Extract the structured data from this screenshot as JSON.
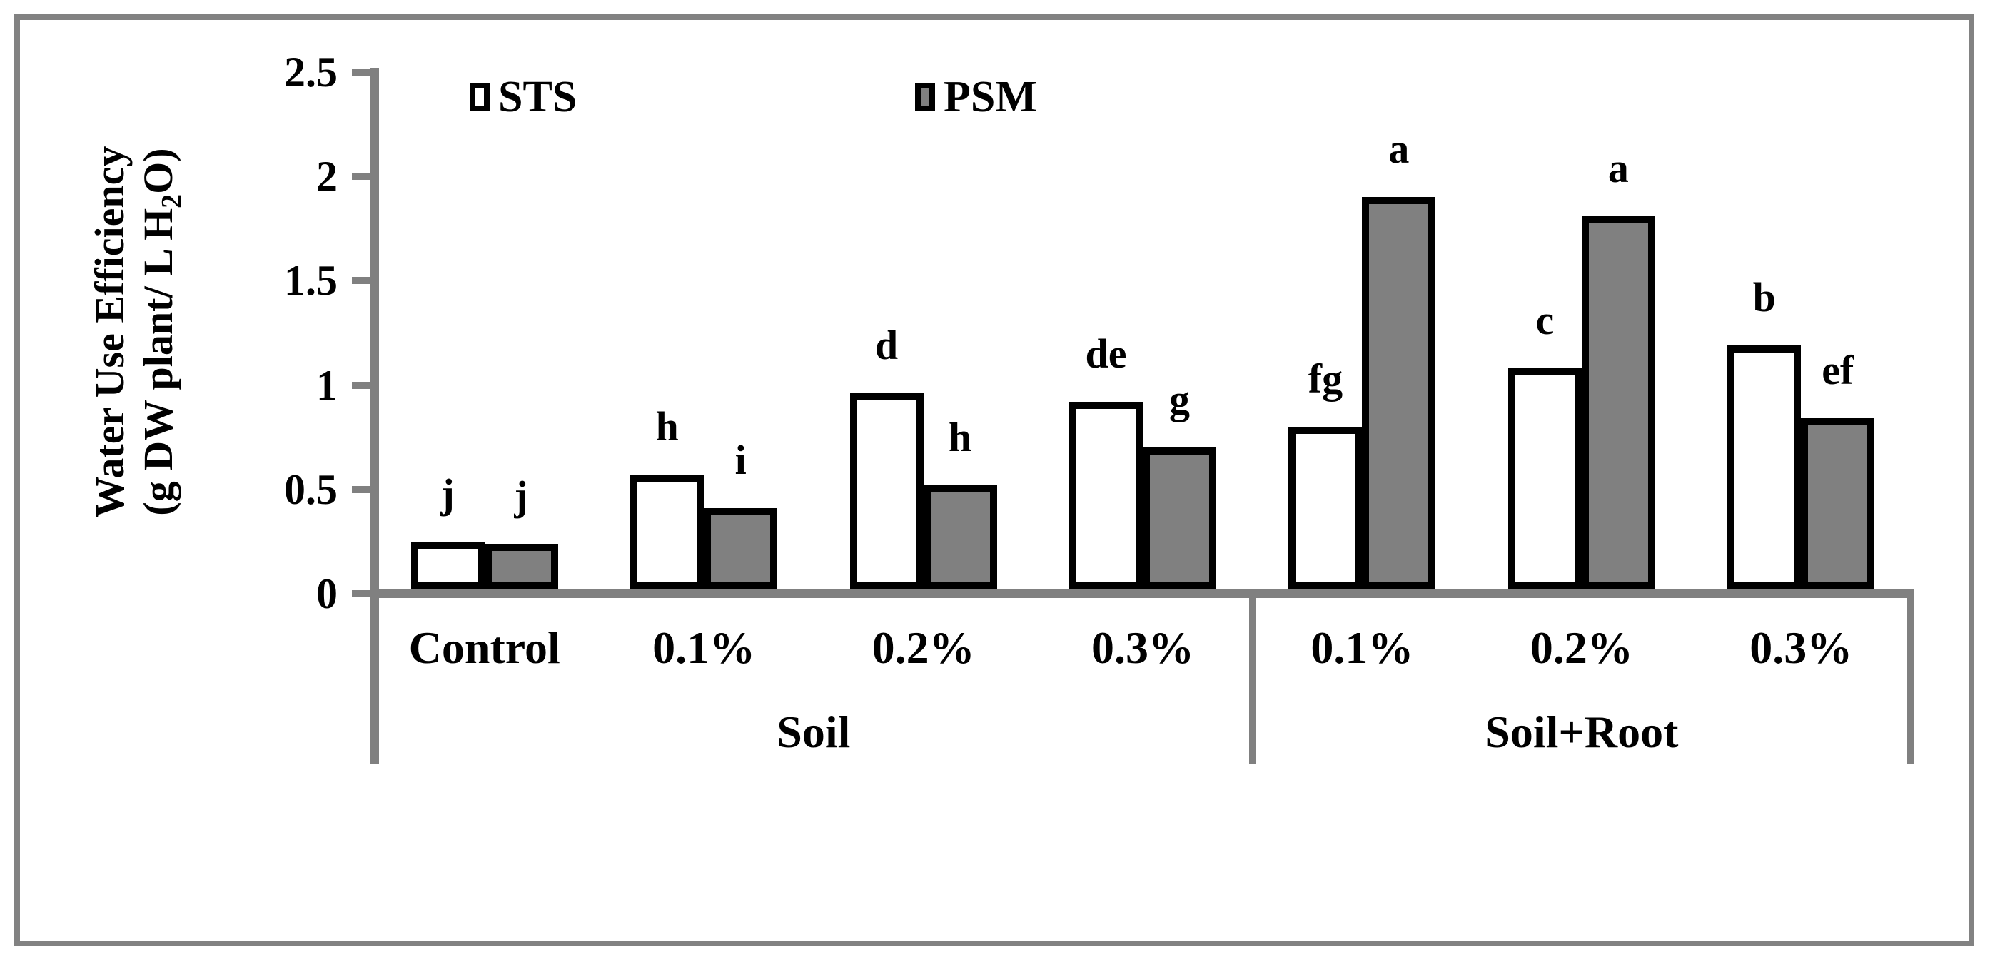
{
  "colors": {
    "axis_gray": "#808080",
    "frame_gray": "#828282",
    "psm_fill": "#808080",
    "sts_fill": "#ffffff",
    "bar_border": "#000000"
  },
  "chart_data": {
    "type": "bar",
    "title": "",
    "ylabel_line1": "Water Use Efficiency",
    "ylabel_line2_prefix": "(g DW plant/ L H",
    "ylabel_line2_sub": "2",
    "ylabel_line2_suffix": "O)",
    "ylim": [
      0,
      2.5
    ],
    "yticks": [
      {
        "value": 0,
        "label": "0"
      },
      {
        "value": 0.5,
        "label": "0.5"
      },
      {
        "value": 1,
        "label": "1"
      },
      {
        "value": 1.5,
        "label": "1.5"
      },
      {
        "value": 2,
        "label": "2"
      },
      {
        "value": 2.5,
        "label": "2.5"
      }
    ],
    "categories": [
      "Control",
      "0.1%",
      "0.2%",
      "0.3%",
      "0.1%",
      "0.2%",
      "0.3%"
    ],
    "groups": [
      {
        "label": "Soil",
        "span": 4
      },
      {
        "label": "Soil+Root",
        "span": 3
      }
    ],
    "legend_position": "top-center",
    "grid": "off",
    "series": [
      {
        "name": "STS",
        "fill": "#ffffff",
        "values": [
          0.25,
          0.57,
          0.96,
          0.92,
          0.8,
          1.08,
          1.19
        ],
        "letters": [
          "j",
          "h",
          "d",
          "de",
          "fg",
          "c",
          "b"
        ]
      },
      {
        "name": "PSM",
        "fill": "#808080",
        "values": [
          0.24,
          0.41,
          0.52,
          0.7,
          1.9,
          1.81,
          0.84
        ],
        "letters": [
          "j",
          "i",
          "h",
          "g",
          "a",
          "a",
          "ef"
        ]
      }
    ]
  }
}
